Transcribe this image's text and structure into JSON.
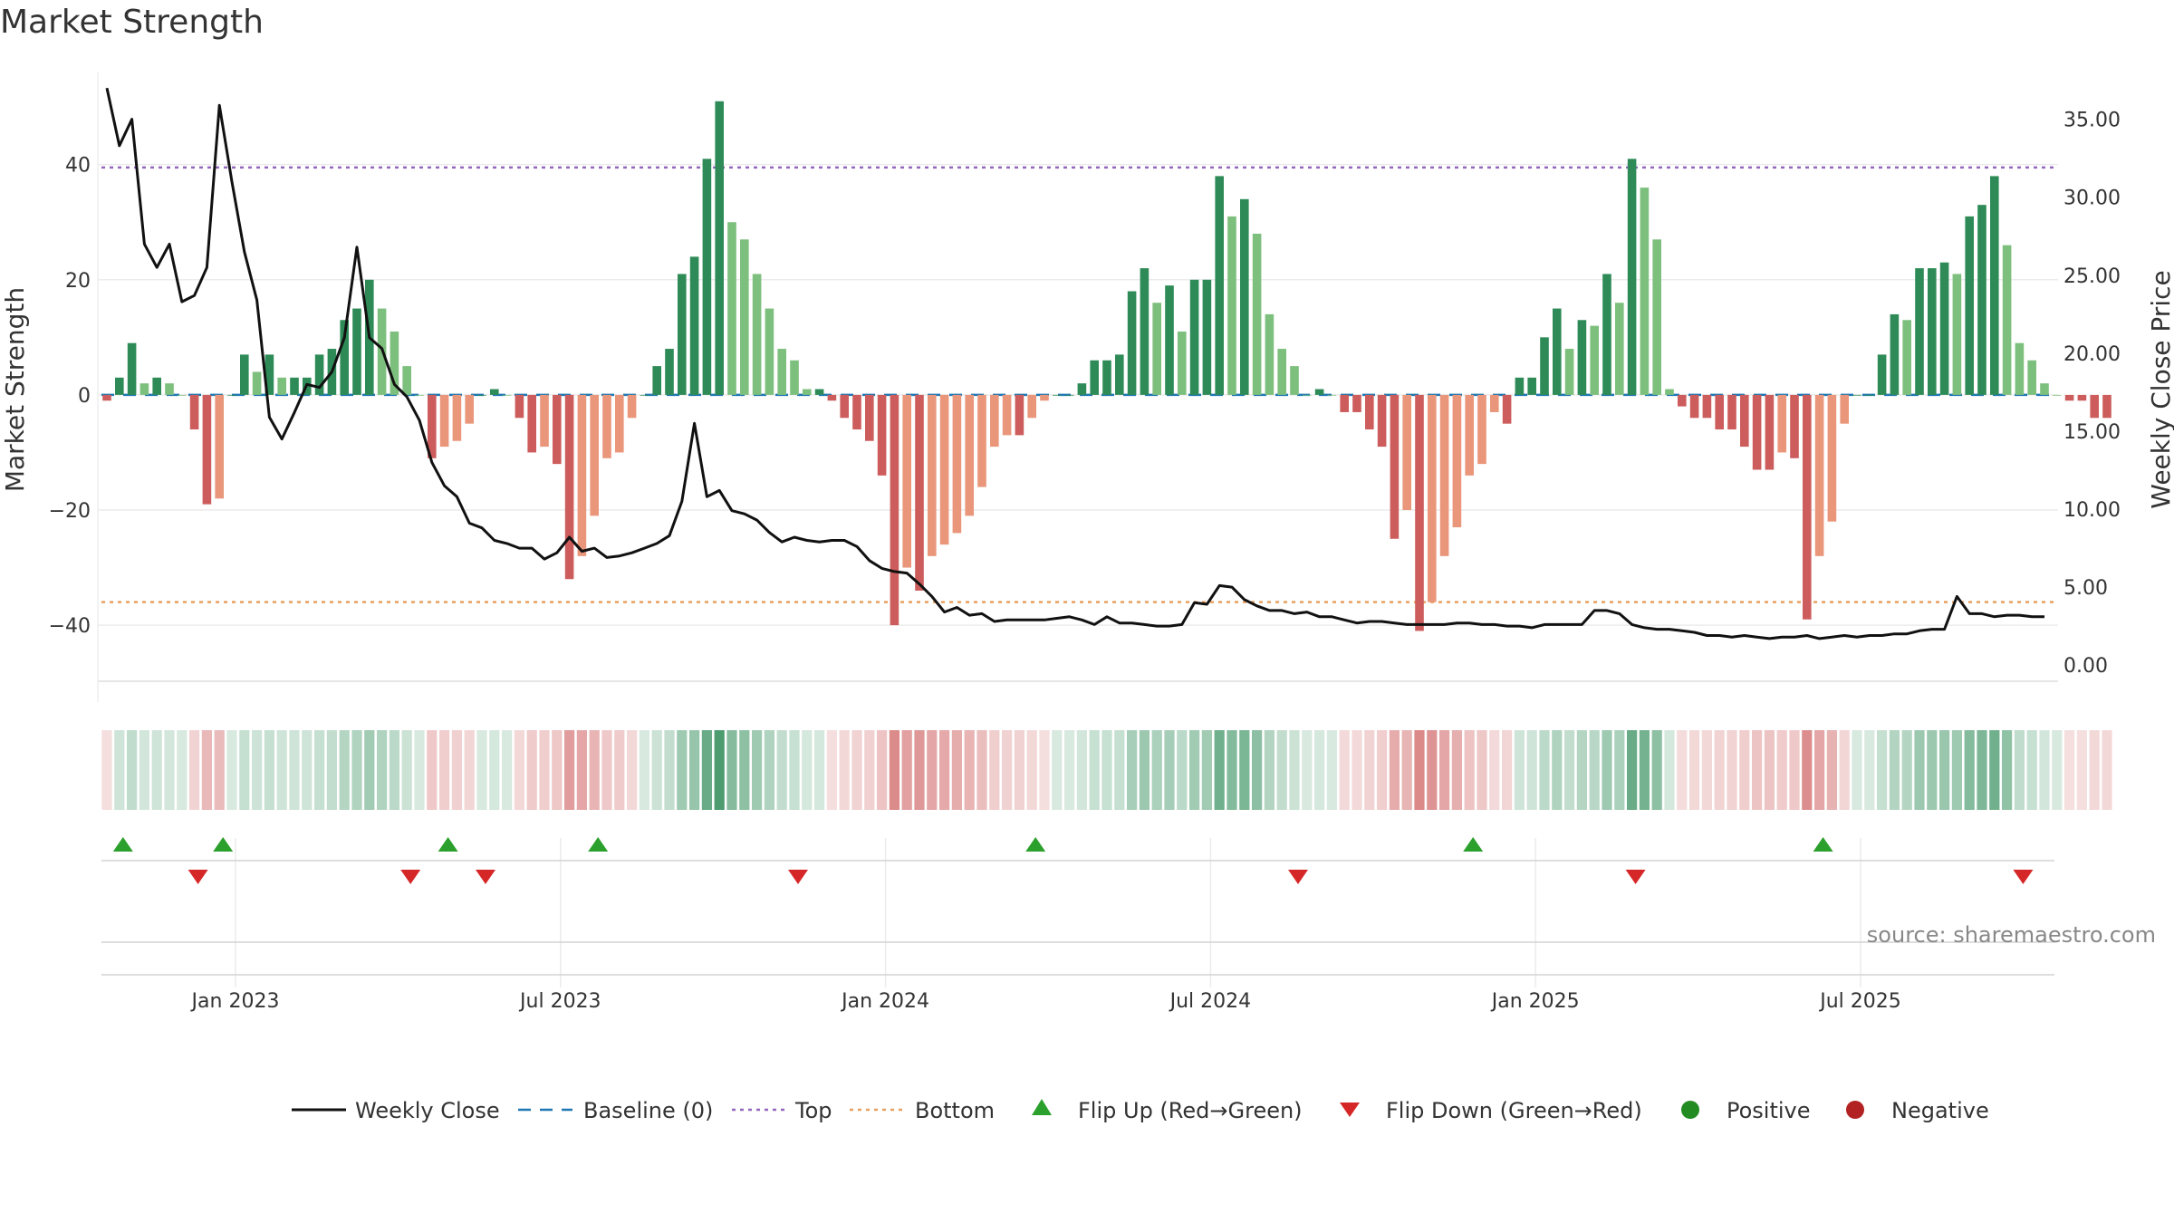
{
  "chart_data": {
    "type": "bar",
    "title": "Market Strength",
    "ylabel_left": "Market Strength",
    "ylabel_right": "Weekly Close Price",
    "ylim_left": [
      -51,
      56
    ],
    "ylim_right": [
      -1.5,
      38
    ],
    "yticks_left": [
      "40",
      "20",
      "0",
      "−20",
      "−40"
    ],
    "yticks_right": [
      "35.00",
      "30.00",
      "25.00",
      "20.00",
      "15.00",
      "10.00",
      "5.00",
      "0.00"
    ],
    "xticks": [
      "Jan 2023",
      "Jul 2023",
      "Jan 2024",
      "Jul 2024",
      "Jan 2025",
      "Jul 2025"
    ],
    "reference_lines": {
      "baseline": 0,
      "top": 39.5,
      "bottom": -36
    },
    "strength": [
      -1,
      3,
      9,
      2,
      3,
      2,
      0,
      -6,
      -19,
      -18,
      0,
      7,
      4,
      7,
      3,
      3,
      3,
      7,
      8,
      13,
      15,
      20,
      15,
      11,
      5,
      0,
      -11,
      -9,
      -8,
      -5,
      0,
      1,
      0,
      -4,
      -10,
      -9,
      -12,
      -32,
      -28,
      -21,
      -11,
      -10,
      -4,
      0,
      5,
      8,
      21,
      24,
      41,
      51,
      30,
      27,
      21,
      15,
      8,
      6,
      1,
      1,
      -1,
      -4,
      -6,
      -8,
      -14,
      -40,
      -30,
      -34,
      -28,
      -26,
      -24,
      -21,
      -16,
      -9,
      -7,
      -7,
      -4,
      -1,
      0,
      0,
      2,
      6,
      6,
      7,
      18,
      22,
      16,
      19,
      11,
      20,
      20,
      38,
      31,
      34,
      28,
      14,
      8,
      5,
      0,
      1,
      0,
      -3,
      -3,
      -6,
      -9,
      -25,
      -20,
      -41,
      -36,
      -28,
      -23,
      -14,
      -12,
      -3,
      -5,
      3,
      3,
      10,
      15,
      8,
      13,
      12,
      21,
      16,
      41,
      36,
      27,
      1,
      -2,
      -4,
      -4,
      -6,
      -6,
      -9,
      -13,
      -13,
      -10,
      -11,
      -39,
      -28,
      -22,
      -5,
      0,
      0,
      7,
      14,
      13,
      22,
      22,
      23,
      21,
      31,
      33,
      38,
      26,
      9,
      6,
      2,
      0,
      -1,
      -1,
      -4,
      -4
    ],
    "weekly_close": [
      37,
      33.3,
      35,
      27,
      25.5,
      27,
      23.3,
      23.7,
      25.5,
      35.9,
      31,
      26.5,
      23.4,
      15.9,
      14.5,
      16.2,
      18,
      17.8,
      18.8,
      21,
      26.8,
      21,
      20.3,
      18,
      17.2,
      15.7,
      13,
      11.5,
      10.8,
      9.1,
      8.8,
      8,
      7.8,
      7.5,
      7.5,
      6.8,
      7.2,
      8.2,
      7.3,
      7.5,
      6.9,
      7,
      7.2,
      7.5,
      7.8,
      8.3,
      10.5,
      15.5,
      10.8,
      11.2,
      9.9,
      9.7,
      9.3,
      8.5,
      7.9,
      8.2,
      8,
      7.9,
      8,
      8,
      7.6,
      6.7,
      6.2,
      6,
      5.9,
      5.2,
      4.4,
      3.4,
      3.7,
      3.2,
      3.3,
      2.8,
      2.9,
      2.9,
      2.9,
      2.9,
      3,
      3.1,
      2.9,
      2.6,
      3.1,
      2.7,
      2.7,
      2.6,
      2.5,
      2.5,
      2.6,
      4,
      3.9,
      5.1,
      5,
      4.2,
      3.8,
      3.5,
      3.5,
      3.3,
      3.4,
      3.1,
      3.1,
      2.9,
      2.7,
      2.8,
      2.8,
      2.7,
      2.6,
      2.6,
      2.6,
      2.6,
      2.7,
      2.7,
      2.6,
      2.6,
      2.5,
      2.5,
      2.4,
      2.6,
      2.6,
      2.6,
      2.6,
      3.5,
      3.5,
      3.3,
      2.6,
      2.4,
      2.3,
      2.3,
      2.2,
      2.1,
      1.9,
      1.9,
      1.8,
      1.9,
      1.8,
      1.7,
      1.8,
      1.8,
      1.9,
      1.7,
      1.8,
      1.9,
      1.8,
      1.9,
      1.9,
      2,
      2,
      2.2,
      2.3,
      2.3,
      4.4,
      3.3,
      3.3,
      3.1,
      3.2,
      3.2,
      3.1,
      3.1
    ],
    "flip_up_weeks": [
      1,
      9,
      27,
      39,
      74,
      109,
      137
    ],
    "flip_down_weeks": [
      7,
      24,
      30,
      55,
      95,
      122,
      153
    ],
    "colors": {
      "strong_green": "#2e8b57",
      "light_green": "#7dbf7d",
      "strong_red": "#cd5c5c",
      "light_red": "#e9967a",
      "price_line": "#111111",
      "baseline": "#1f77b4",
      "top": "#9467bd",
      "bottom": "#e8a060",
      "flip_up": "#2ca02c",
      "flip_down": "#d62728",
      "positive": "#228b22",
      "negative": "#b22222"
    },
    "legend": [
      {
        "label": "Weekly Close",
        "symbol": "line"
      },
      {
        "label": "Baseline (0)",
        "symbol": "dash"
      },
      {
        "label": "Top",
        "symbol": "dot"
      },
      {
        "label": "Bottom",
        "symbol": "dot"
      },
      {
        "label": "Flip Up (Red→Green)",
        "symbol": "triangle-up"
      },
      {
        "label": "Flip Down (Green→Red)",
        "symbol": "triangle-down"
      },
      {
        "label": "Positive",
        "symbol": "circle"
      },
      {
        "label": "Negative",
        "symbol": "circle"
      }
    ],
    "legend_placement": "bottom-center",
    "source": "source: sharemaestro.com"
  }
}
